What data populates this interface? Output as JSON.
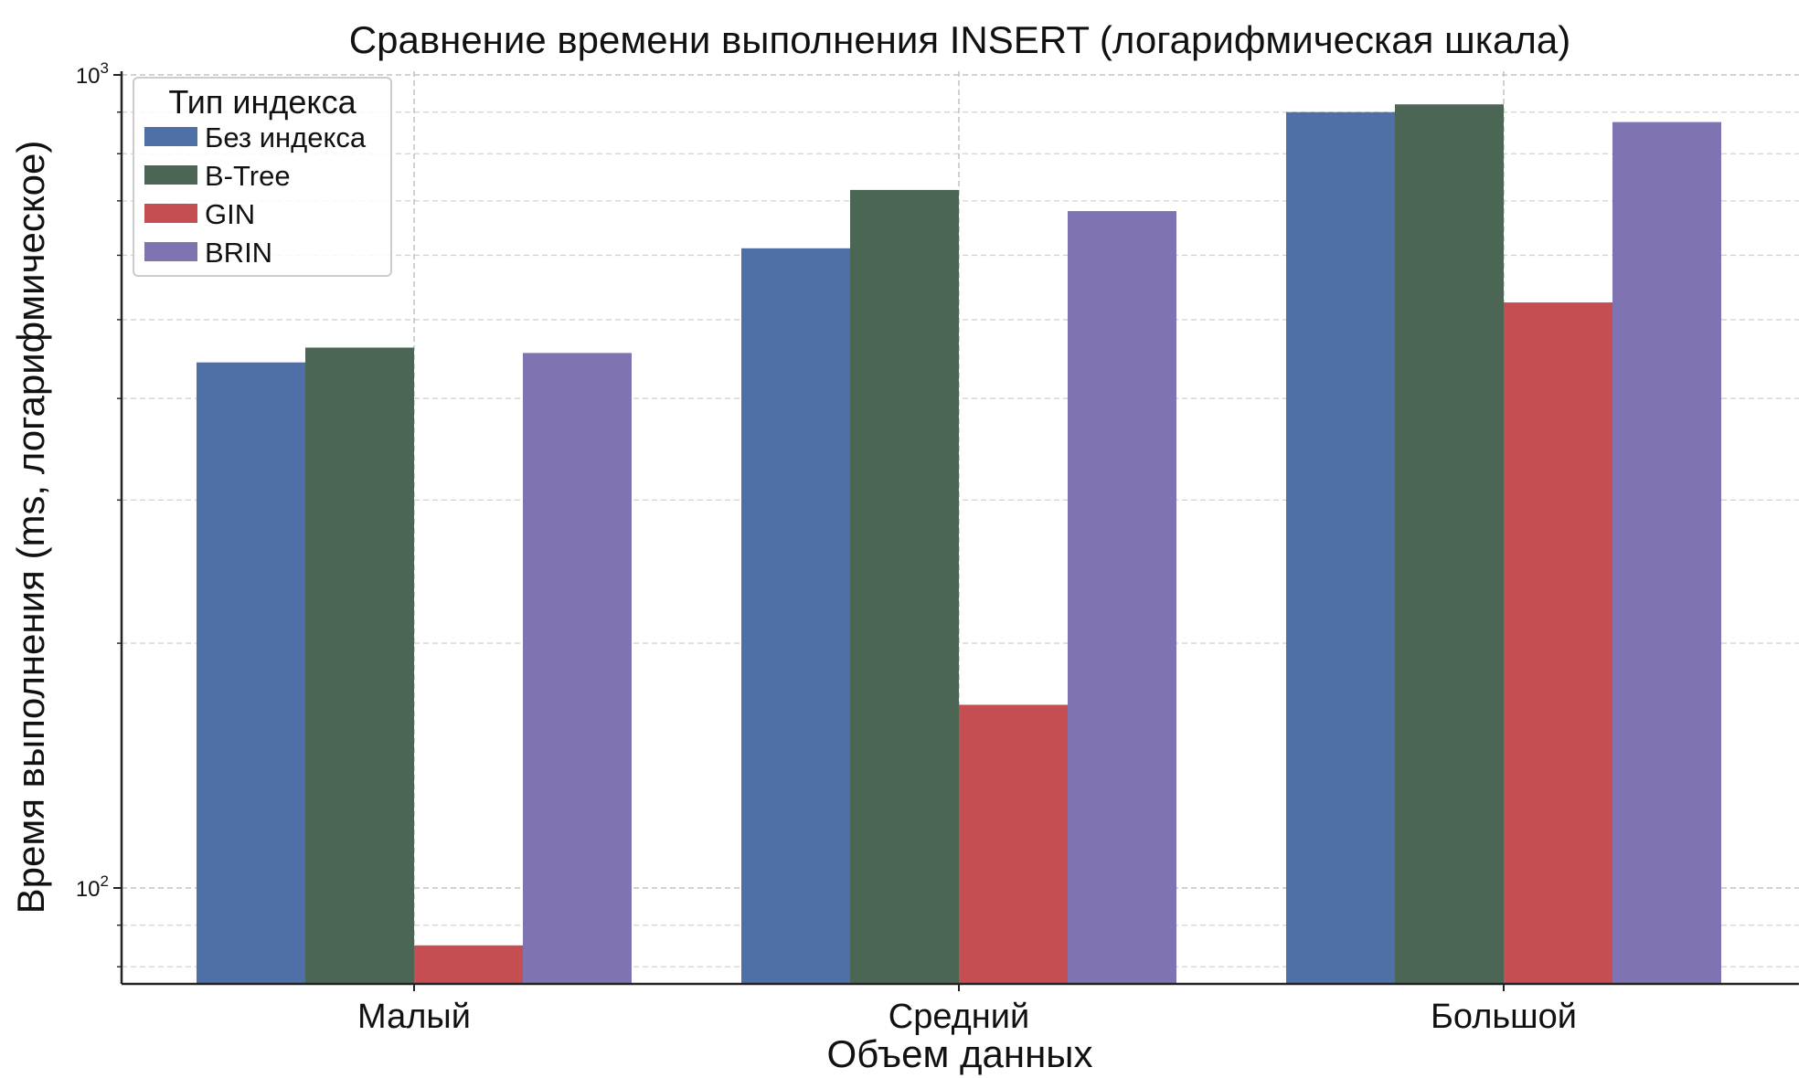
{
  "chart_data": {
    "type": "bar",
    "title": "Сравнение времени выполнения INSERT (логарифмическая шкала)",
    "xlabel": "Объем данных",
    "ylabel": "Время выполнения (ms, логарифмическое)",
    "yscale": "log",
    "ylim": [
      77,
      1000
    ],
    "grid": true,
    "categories": [
      "Малый",
      "Средний",
      "Большой"
    ],
    "y_ticks": [
      {
        "value": 100,
        "base": "10",
        "exp": "2"
      },
      {
        "value": 1000,
        "base": "10",
        "exp": "3"
      }
    ],
    "legend": {
      "title": "Тип индекса",
      "placement": "top-left"
    },
    "series": [
      {
        "name": "Без индекса",
        "color": "#4f70a6",
        "values": [
          443,
          612,
          900
        ]
      },
      {
        "name": "B-Tree",
        "color": "#4b6655",
        "values": [
          462,
          722,
          920
        ]
      },
      {
        "name": "GIN",
        "color": "#c44e52",
        "values": [
          85,
          168,
          525
        ]
      },
      {
        "name": "BRIN",
        "color": "#8073b2",
        "values": [
          455,
          680,
          875
        ]
      }
    ]
  }
}
